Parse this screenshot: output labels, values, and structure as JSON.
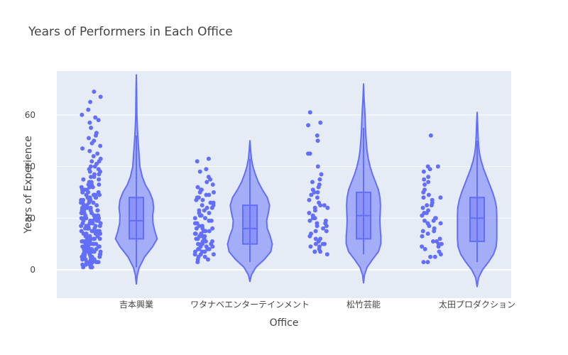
{
  "chart_data": {
    "type": "violin",
    "title": "Years of Performers in Each Office",
    "xlabel": "Office",
    "ylabel": "Years  of Experience",
    "categories": [
      "吉本興業",
      "ワタナベエンターテインメント",
      "松竹芸能",
      "太田プロダクション"
    ],
    "ylim": [
      -11,
      77
    ],
    "yticks": [
      0,
      20,
      40,
      60
    ],
    "grid": true,
    "legend": "none",
    "colors": {
      "series": "#636efa",
      "plot_background": "#e5ecf6",
      "grid": "#ffffff"
    },
    "series": [
      {
        "category": "吉本興業",
        "min": 1,
        "q1": 12,
        "median": 19,
        "q3": 28,
        "max": 52,
        "kde_range": [
          -5.5,
          75.5
        ],
        "density": [
          [
            -5.5,
            0
          ],
          [
            -2,
            0.03
          ],
          [
            1,
            0.1
          ],
          [
            5,
            0.28
          ],
          [
            9,
            0.55
          ],
          [
            12,
            0.7
          ],
          [
            15,
            0.62
          ],
          [
            18,
            0.56
          ],
          [
            21,
            0.55
          ],
          [
            24,
            0.58
          ],
          [
            27,
            0.55
          ],
          [
            30,
            0.45
          ],
          [
            33,
            0.3
          ],
          [
            36,
            0.2
          ],
          [
            40,
            0.12
          ],
          [
            45,
            0.09
          ],
          [
            50,
            0.06
          ],
          [
            55,
            0.035
          ],
          [
            60,
            0.02
          ],
          [
            65,
            0.015
          ],
          [
            70,
            0.01
          ],
          [
            75.5,
            0
          ]
        ],
        "points": [
          1,
          1,
          1,
          2,
          2,
          2,
          2,
          3,
          3,
          3,
          3,
          3,
          4,
          4,
          4,
          4,
          4,
          5,
          5,
          5,
          5,
          5,
          5,
          6,
          6,
          6,
          6,
          6,
          7,
          7,
          7,
          7,
          7,
          7,
          8,
          8,
          8,
          8,
          8,
          8,
          9,
          9,
          9,
          9,
          9,
          9,
          10,
          10,
          10,
          10,
          10,
          10,
          11,
          11,
          11,
          11,
          11,
          11,
          12,
          12,
          12,
          12,
          12,
          12,
          13,
          13,
          13,
          13,
          13,
          13,
          14,
          14,
          14,
          14,
          14,
          14,
          15,
          15,
          15,
          15,
          15,
          15,
          16,
          16,
          16,
          16,
          16,
          17,
          17,
          17,
          17,
          17,
          18,
          18,
          18,
          18,
          18,
          19,
          19,
          19,
          19,
          19,
          20,
          20,
          20,
          20,
          20,
          21,
          21,
          21,
          21,
          21,
          22,
          22,
          22,
          22,
          22,
          23,
          23,
          23,
          23,
          23,
          24,
          24,
          24,
          24,
          24,
          25,
          25,
          25,
          25,
          26,
          26,
          26,
          26,
          27,
          27,
          27,
          27,
          28,
          28,
          28,
          28,
          29,
          29,
          29,
          29,
          30,
          30,
          30,
          30,
          31,
          31,
          31,
          32,
          32,
          32,
          33,
          33,
          33,
          34,
          34,
          35,
          35,
          36,
          36,
          37,
          37,
          38,
          38,
          39,
          39,
          40,
          40,
          41,
          42,
          42,
          43,
          44,
          45,
          46,
          47,
          48,
          49,
          50,
          51,
          52,
          53,
          55,
          57,
          58,
          59,
          60,
          62,
          65,
          67,
          69
        ]
      },
      {
        "category": "ワタナベエンターテインメント",
        "min": 3,
        "q1": 10,
        "median": 16,
        "q3": 25,
        "max": 43,
        "kde_range": [
          -4.5,
          50
        ],
        "density": [
          [
            -4.5,
            0
          ],
          [
            -2,
            0.05
          ],
          [
            1,
            0.2
          ],
          [
            4,
            0.48
          ],
          [
            7,
            0.7
          ],
          [
            10,
            0.75
          ],
          [
            13,
            0.68
          ],
          [
            16,
            0.58
          ],
          [
            19,
            0.56
          ],
          [
            22,
            0.62
          ],
          [
            25,
            0.66
          ],
          [
            28,
            0.58
          ],
          [
            31,
            0.42
          ],
          [
            34,
            0.28
          ],
          [
            37,
            0.18
          ],
          [
            40,
            0.1
          ],
          [
            43,
            0.05
          ],
          [
            46,
            0.025
          ],
          [
            50,
            0
          ]
        ],
        "points": [
          3,
          4,
          4,
          5,
          5,
          6,
          6,
          6,
          7,
          7,
          7,
          8,
          8,
          8,
          8,
          9,
          9,
          9,
          10,
          10,
          10,
          10,
          11,
          11,
          11,
          12,
          12,
          12,
          13,
          13,
          13,
          14,
          14,
          14,
          15,
          15,
          15,
          16,
          16,
          16,
          17,
          17,
          18,
          18,
          19,
          19,
          20,
          20,
          21,
          21,
          22,
          22,
          23,
          23,
          24,
          24,
          25,
          25,
          26,
          26,
          27,
          27,
          28,
          28,
          29,
          29,
          30,
          30,
          31,
          31,
          32,
          33,
          34,
          35,
          36,
          38,
          39,
          42,
          43
        ]
      },
      {
        "category": "松竹芸能",
        "min": 6,
        "q1": 12,
        "median": 21,
        "q3": 30,
        "max": 55,
        "kde_range": [
          -5,
          72
        ],
        "density": [
          [
            -5,
            0
          ],
          [
            -2,
            0.03
          ],
          [
            1,
            0.12
          ],
          [
            4,
            0.3
          ],
          [
            7,
            0.5
          ],
          [
            10,
            0.58
          ],
          [
            13,
            0.58
          ],
          [
            16,
            0.56
          ],
          [
            19,
            0.55
          ],
          [
            22,
            0.56
          ],
          [
            25,
            0.57
          ],
          [
            28,
            0.55
          ],
          [
            31,
            0.5
          ],
          [
            34,
            0.4
          ],
          [
            37,
            0.3
          ],
          [
            40,
            0.22
          ],
          [
            43,
            0.16
          ],
          [
            46,
            0.12
          ],
          [
            50,
            0.09
          ],
          [
            54,
            0.07
          ],
          [
            57,
            0.06
          ],
          [
            60,
            0.05
          ],
          [
            63,
            0.035
          ],
          [
            66,
            0.02
          ],
          [
            69,
            0.01
          ],
          [
            72,
            0
          ]
        ],
        "points": [
          6,
          7,
          7,
          7,
          8,
          9,
          9,
          10,
          10,
          10,
          11,
          11,
          12,
          12,
          13,
          14,
          15,
          15,
          16,
          17,
          17,
          18,
          18,
          19,
          19,
          20,
          20,
          21,
          22,
          23,
          24,
          24,
          25,
          25,
          26,
          27,
          28,
          29,
          30,
          30,
          31,
          32,
          33,
          34,
          35,
          37,
          40,
          45,
          45,
          50,
          52,
          56,
          57,
          61
        ]
      },
      {
        "category": "太田プロダクション",
        "min": 3,
        "q1": 11,
        "median": 20,
        "q3": 28,
        "max": 50,
        "kde_range": [
          -6.5,
          61
        ],
        "density": [
          [
            -6.5,
            0
          ],
          [
            -3,
            0.05
          ],
          [
            0,
            0.18
          ],
          [
            3,
            0.38
          ],
          [
            6,
            0.55
          ],
          [
            9,
            0.64
          ],
          [
            12,
            0.66
          ],
          [
            15,
            0.66
          ],
          [
            18,
            0.66
          ],
          [
            21,
            0.66
          ],
          [
            24,
            0.65
          ],
          [
            27,
            0.6
          ],
          [
            30,
            0.52
          ],
          [
            33,
            0.42
          ],
          [
            36,
            0.32
          ],
          [
            39,
            0.22
          ],
          [
            42,
            0.14
          ],
          [
            45,
            0.08
          ],
          [
            48,
            0.05
          ],
          [
            52,
            0.03
          ],
          [
            56,
            0.02
          ],
          [
            61,
            0
          ]
        ],
        "points": [
          3,
          3,
          5,
          5,
          6,
          7,
          8,
          9,
          9,
          10,
          10,
          11,
          11,
          12,
          13,
          14,
          15,
          15,
          16,
          17,
          18,
          18,
          19,
          19,
          20,
          20,
          21,
          22,
          22,
          23,
          24,
          25,
          25,
          26,
          27,
          28,
          28,
          29,
          30,
          31,
          33,
          34,
          35,
          36,
          38,
          39,
          40,
          40,
          52
        ]
      }
    ]
  }
}
